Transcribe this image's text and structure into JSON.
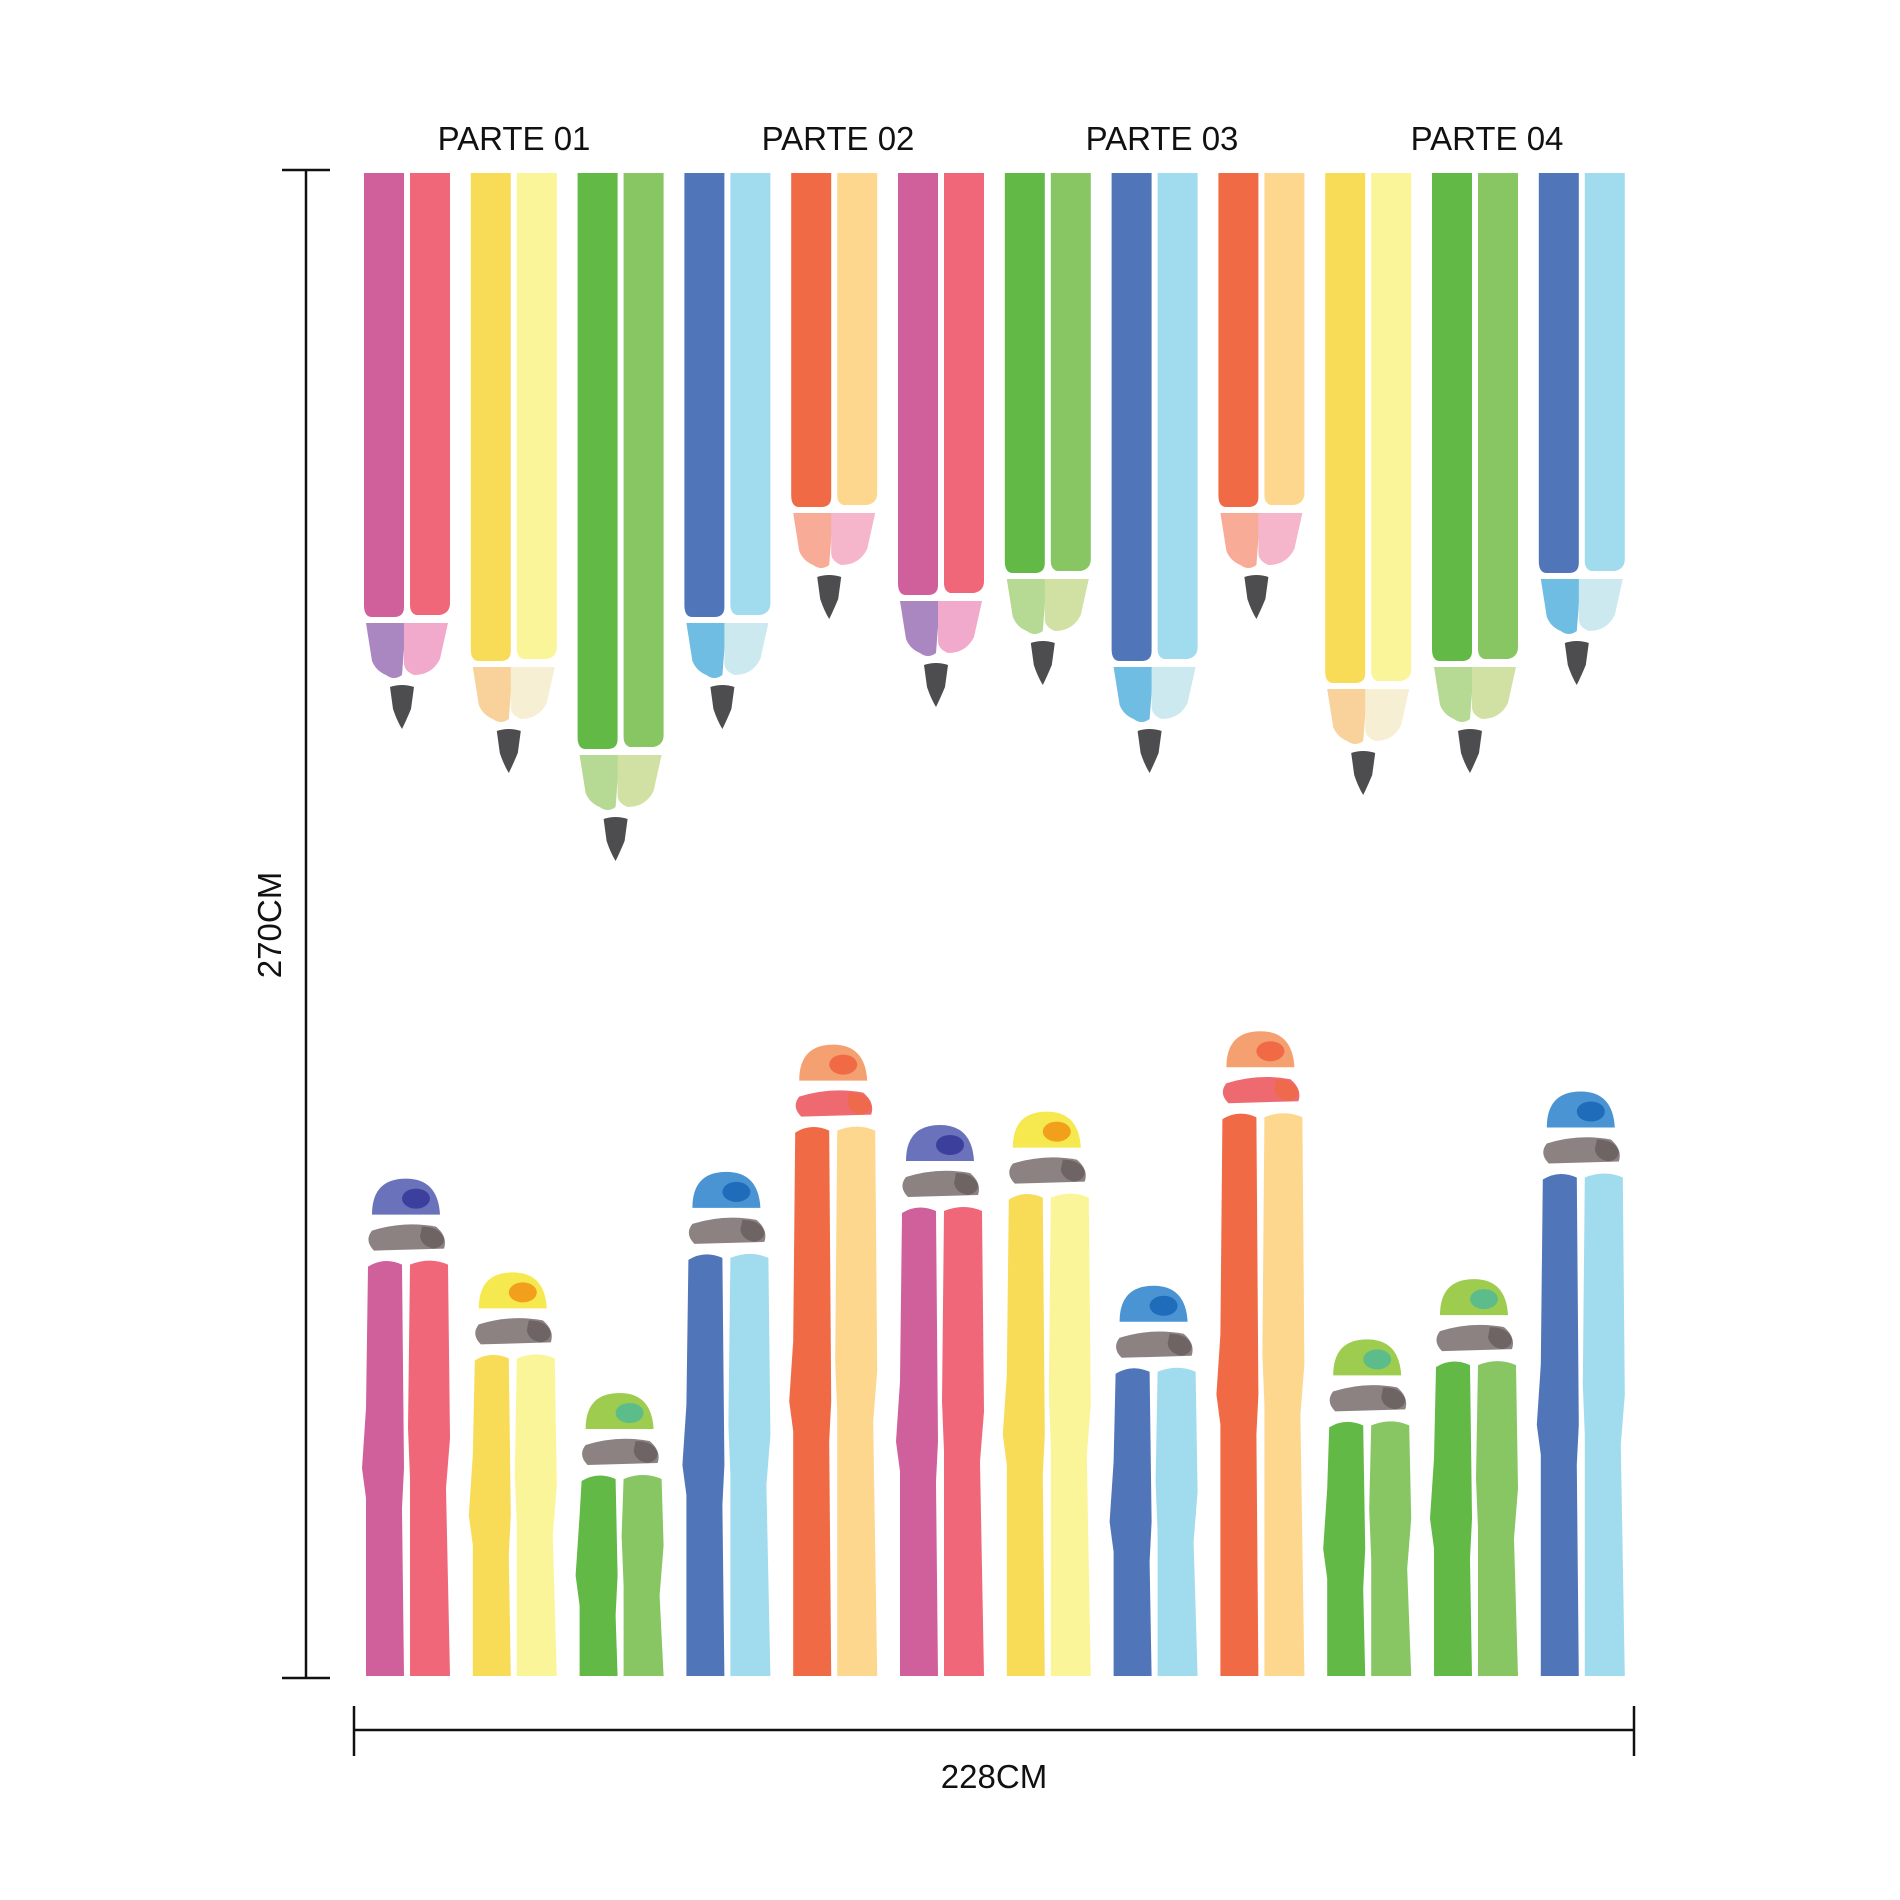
{
  "parts": [
    "PARTE 01",
    "PARTE 02",
    "PARTE 03",
    "PARTE 04"
  ],
  "dimensions": {
    "height_label": "270CM",
    "width_label": "228CM"
  },
  "colors": {
    "ink": "#111111",
    "lead": "#4d4d4f",
    "eraser_band": "#8c8282",
    "eraser_band_shadow": "#6a5f5f",
    "pink": {
      "a": "#d0609c",
      "b": "#ef6779",
      "tipA": "#ab87c2",
      "tipB": "#f2aacc",
      "cap": "#6a72bb",
      "capSpot": "#3d3f9c",
      "band": "#8c8282"
    },
    "yellow": {
      "a": "#f8dc57",
      "b": "#fbf59a",
      "tipA": "#f8d29a",
      "tipB": "#f6efd3",
      "cap": "#f6e84f",
      "capSpot": "#f2a01c",
      "band": "#8c8282"
    },
    "green": {
      "a": "#62b946",
      "b": "#88c664",
      "tipA": "#b6d994",
      "tipB": "#d1e1a4",
      "cap": "#9ecc4f",
      "capSpot": "#5cbd8b",
      "band": "#8c8282"
    },
    "blue": {
      "a": "#5175b9",
      "b": "#a1dbee",
      "tipA": "#6fbde2",
      "tipB": "#cce9f0",
      "cap": "#4a94d4",
      "capSpot": "#1f6cba",
      "band": "#8c8282"
    },
    "orange": {
      "a": "#ef6a45",
      "b": "#fdd78d",
      "tipA": "#f8ac98",
      "tipB": "#f5b6cc",
      "cap": "#f5a070",
      "capSpot": "#ef6a45",
      "band": "#ef6a70"
    }
  },
  "top_pencils": [
    {
      "scheme": "pink",
      "length": 1.0
    },
    {
      "scheme": "yellow",
      "length": 1.1
    },
    {
      "scheme": "green",
      "length": 1.3
    },
    {
      "scheme": "blue",
      "length": 1.0
    },
    {
      "scheme": "orange",
      "length": 0.75
    },
    {
      "scheme": "pink",
      "length": 0.95
    },
    {
      "scheme": "green",
      "length": 0.9
    },
    {
      "scheme": "blue",
      "length": 1.1
    },
    {
      "scheme": "orange",
      "length": 0.75
    },
    {
      "scheme": "yellow",
      "length": 1.15
    },
    {
      "scheme": "green",
      "length": 1.1
    },
    {
      "scheme": "blue",
      "length": 0.9
    }
  ],
  "bottom_pencils": [
    {
      "scheme": "pink",
      "length": 0.62
    },
    {
      "scheme": "yellow",
      "length": 0.48
    },
    {
      "scheme": "green",
      "length": 0.3
    },
    {
      "scheme": "blue",
      "length": 0.63
    },
    {
      "scheme": "orange",
      "length": 0.82
    },
    {
      "scheme": "pink",
      "length": 0.7
    },
    {
      "scheme": "yellow",
      "length": 0.72
    },
    {
      "scheme": "blue",
      "length": 0.46
    },
    {
      "scheme": "orange",
      "length": 0.84
    },
    {
      "scheme": "green",
      "length": 0.38
    },
    {
      "scheme": "green",
      "length": 0.47
    },
    {
      "scheme": "blue",
      "length": 0.75
    }
  ]
}
